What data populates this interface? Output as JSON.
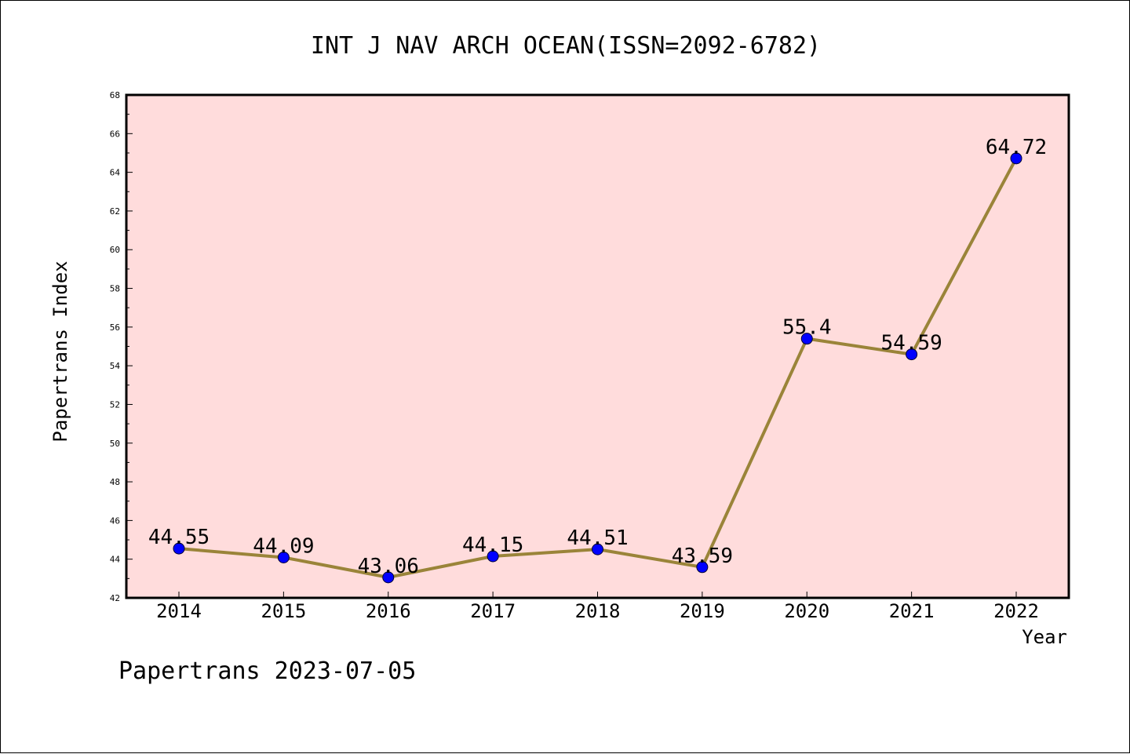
{
  "chart_data": {
    "type": "line",
    "title": "INT J NAV ARCH OCEAN(ISSN=2092-6782)",
    "xlabel": "Year",
    "ylabel": "Papertrans Index",
    "categories": [
      "2014",
      "2015",
      "2016",
      "2017",
      "2018",
      "2019",
      "2020",
      "2021",
      "2022"
    ],
    "series": [
      {
        "values": [
          44.55,
          44.09,
          43.06,
          44.15,
          44.51,
          43.59,
          55.4,
          54.59,
          64.72
        ],
        "labels": [
          "44.55",
          "44.09",
          "43.06",
          "44.15",
          "44.51",
          "43.59",
          "55.4",
          "54.59",
          "64.72"
        ]
      }
    ],
    "ylim": [
      42,
      68
    ],
    "yticks": [
      42,
      44,
      46,
      48,
      50,
      52,
      54,
      56,
      58,
      60,
      62,
      64,
      66,
      68
    ],
    "grid": false,
    "legend": "none",
    "colors": {
      "plot_background": "#ffdcdc",
      "line": "#9a8439",
      "marker": "#0000ff"
    }
  },
  "footer": "Papertrans 2023-07-05"
}
